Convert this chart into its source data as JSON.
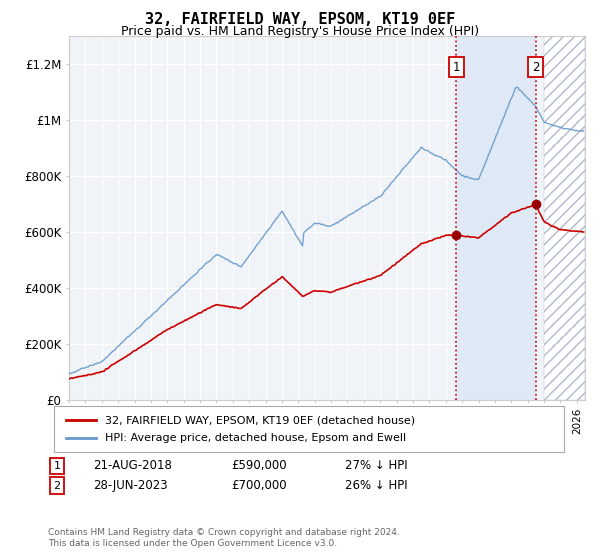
{
  "title": "32, FAIRFIELD WAY, EPSOM, KT19 0EF",
  "subtitle": "Price paid vs. HM Land Registry's House Price Index (HPI)",
  "ylim": [
    0,
    1300000
  ],
  "xlim_start": 1995.0,
  "xlim_end": 2026.5,
  "yticks": [
    0,
    200000,
    400000,
    600000,
    800000,
    1000000,
    1200000
  ],
  "ytick_labels": [
    "£0",
    "£200K",
    "£400K",
    "£600K",
    "£800K",
    "£1M",
    "£1.2M"
  ],
  "background_color": "#e8f0f8",
  "plot_bg_color": "#f0f4f8",
  "hatch_region_start": 2024.0,
  "shaded_region_start": 2018.64,
  "shaded_region_end": 2023.49,
  "marker1_x": 2018.64,
  "marker1_y": 590000,
  "marker2_x": 2023.49,
  "marker2_y": 700000,
  "marker1_label": "21-AUG-2018",
  "marker1_price": "£590,000",
  "marker1_hpi": "27% ↓ HPI",
  "marker2_label": "28-JUN-2023",
  "marker2_price": "£700,000",
  "marker2_hpi": "26% ↓ HPI",
  "legend_line1": "32, FAIRFIELD WAY, EPSOM, KT19 0EF (detached house)",
  "legend_line2": "HPI: Average price, detached house, Epsom and Ewell",
  "footer": "Contains HM Land Registry data © Crown copyright and database right 2024.\nThis data is licensed under the Open Government Licence v3.0.",
  "red_line_color": "#cc0000",
  "blue_line_color": "#6699cc",
  "shaded_region_color": "#ddeeff",
  "hatch_color": "#aaaacc"
}
